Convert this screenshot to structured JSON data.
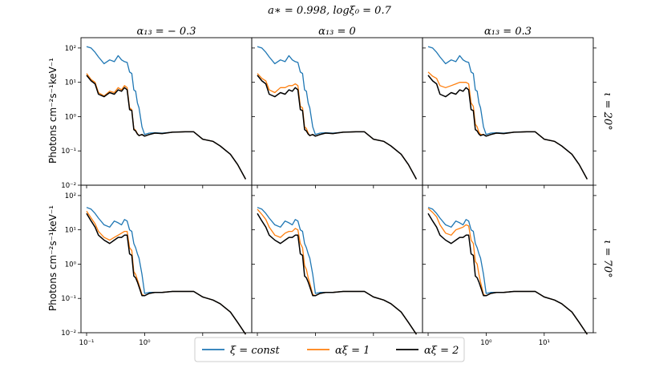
{
  "chart_data": {
    "type": "line",
    "title": "a∗ = 0.998, logξ₀ = 0.7",
    "ylabel": "Photons cm⁻²s⁻¹keV⁻¹",
    "xscale": "log",
    "yscale": "log",
    "xlim": [
      0.08,
      70
    ],
    "ylim": [
      0.01,
      200
    ],
    "x_ticks": [
      {
        "value": 0.1,
        "label": "10⁻¹"
      },
      {
        "value": 1,
        "label": "10⁰"
      },
      {
        "value": 10,
        "label": "10¹"
      }
    ],
    "y_ticks": [
      {
        "value": 100,
        "label": "10²"
      },
      {
        "value": 10,
        "label": "10¹"
      },
      {
        "value": 1,
        "label": "10⁰"
      },
      {
        "value": 0.1,
        "label": "10⁻¹"
      },
      {
        "value": 0.01,
        "label": "10⁻²"
      }
    ],
    "columns": [
      {
        "label": "α₁₃ = − 0.3",
        "value": -0.3
      },
      {
        "label": "α₁₃ = 0",
        "value": 0
      },
      {
        "label": "α₁₃ = 0.3",
        "value": 0.3
      }
    ],
    "rows": [
      {
        "label": "ι = 20°",
        "value": 20
      },
      {
        "label": "ι = 70°",
        "value": 70
      }
    ],
    "legend": [
      {
        "label": "ξ = const",
        "color": "#1f77b4"
      },
      {
        "label": "αξ = 1",
        "color": "#ff7f0e"
      },
      {
        "label": "αξ = 2",
        "color": "#000000"
      }
    ],
    "series": [
      {
        "name": "ξ = const",
        "color": "#1f77b4",
        "x": [
          0.1,
          0.12,
          0.14,
          0.16,
          0.2,
          0.25,
          0.3,
          0.35,
          0.4,
          0.45,
          0.5,
          0.55,
          0.6,
          0.65,
          0.7,
          0.75,
          0.8,
          0.9,
          1.0,
          1.2,
          1.5,
          2,
          3,
          5,
          7,
          10,
          15,
          20,
          30,
          40,
          55
        ],
        "panels": [
          [
            110,
            100,
            75,
            55,
            35,
            45,
            40,
            60,
            45,
            40,
            38,
            20,
            18,
            6,
            5.5,
            2.5,
            1.8,
            0.5,
            0.3,
            0.33,
            0.34,
            0.33,
            0.35,
            0.36,
            0.36,
            0.22,
            0.19,
            0.14,
            0.08,
            0.04,
            0.015
          ],
          [
            110,
            100,
            75,
            55,
            35,
            45,
            40,
            60,
            45,
            40,
            38,
            20,
            18,
            6,
            5.5,
            2.5,
            1.8,
            0.5,
            0.3,
            0.33,
            0.34,
            0.33,
            0.35,
            0.36,
            0.36,
            0.22,
            0.19,
            0.14,
            0.08,
            0.04,
            0.015
          ],
          [
            110,
            100,
            75,
            55,
            35,
            45,
            40,
            60,
            45,
            40,
            38,
            20,
            18,
            6,
            5.5,
            2.5,
            1.8,
            0.5,
            0.3,
            0.33,
            0.34,
            0.33,
            0.35,
            0.36,
            0.36,
            0.22,
            0.19,
            0.14,
            0.08,
            0.04,
            0.015
          ],
          [
            45,
            40,
            30,
            22,
            14,
            12,
            18,
            16,
            14,
            20,
            18,
            10,
            9,
            4,
            3,
            2,
            1.5,
            0.5,
            0.14,
            0.15,
            0.15,
            0.15,
            0.16,
            0.16,
            0.16,
            0.11,
            0.09,
            0.07,
            0.04,
            0.02,
            0.009
          ],
          [
            45,
            40,
            30,
            22,
            14,
            12,
            18,
            16,
            14,
            20,
            18,
            10,
            9,
            4,
            3,
            2,
            1.5,
            0.5,
            0.14,
            0.15,
            0.15,
            0.15,
            0.16,
            0.16,
            0.16,
            0.11,
            0.09,
            0.07,
            0.04,
            0.02,
            0.009
          ],
          [
            45,
            40,
            30,
            22,
            14,
            12,
            18,
            16,
            14,
            20,
            18,
            10,
            9,
            4,
            3,
            2,
            1.5,
            0.5,
            0.14,
            0.15,
            0.15,
            0.15,
            0.16,
            0.16,
            0.16,
            0.11,
            0.09,
            0.07,
            0.04,
            0.02,
            0.009
          ]
        ]
      },
      {
        "name": "αξ = 1",
        "color": "#ff7f0e",
        "x": [
          0.1,
          0.12,
          0.14,
          0.16,
          0.2,
          0.25,
          0.3,
          0.35,
          0.4,
          0.45,
          0.5,
          0.55,
          0.6,
          0.65,
          0.7,
          0.75,
          0.8,
          0.9,
          1.0,
          1.2,
          1.5,
          2,
          3,
          5,
          7,
          10,
          15,
          20,
          30,
          40,
          55
        ],
        "panels": [
          [
            18,
            12,
            10,
            5,
            4,
            5.5,
            5,
            7,
            6,
            8,
            7,
            1.8,
            1.6,
            0.45,
            0.4,
            0.32,
            0.28,
            0.3,
            0.27,
            0.3,
            0.33,
            0.32,
            0.35,
            0.36,
            0.36,
            0.22,
            0.19,
            0.14,
            0.08,
            0.04,
            0.015
          ],
          [
            18,
            13,
            11,
            6,
            5,
            7,
            7,
            8,
            8,
            9,
            8,
            2,
            1.8,
            0.5,
            0.45,
            0.33,
            0.28,
            0.3,
            0.27,
            0.3,
            0.33,
            0.32,
            0.35,
            0.36,
            0.36,
            0.22,
            0.19,
            0.14,
            0.08,
            0.04,
            0.015
          ],
          [
            20,
            15,
            13,
            8,
            7,
            8,
            9,
            10,
            10,
            10,
            9,
            2.5,
            2,
            0.6,
            0.5,
            0.35,
            0.3,
            0.3,
            0.27,
            0.3,
            0.33,
            0.32,
            0.35,
            0.36,
            0.36,
            0.22,
            0.19,
            0.14,
            0.08,
            0.04,
            0.015
          ],
          [
            35,
            22,
            15,
            9,
            6,
            5,
            6,
            7,
            8,
            9,
            9,
            3,
            2.5,
            0.6,
            0.5,
            0.35,
            0.25,
            0.13,
            0.12,
            0.14,
            0.15,
            0.15,
            0.16,
            0.16,
            0.16,
            0.11,
            0.09,
            0.07,
            0.04,
            0.02,
            0.009
          ],
          [
            40,
            28,
            20,
            12,
            7,
            6,
            8,
            9,
            9,
            11,
            10,
            4,
            3,
            0.9,
            0.7,
            0.4,
            0.28,
            0.13,
            0.12,
            0.14,
            0.15,
            0.15,
            0.16,
            0.16,
            0.16,
            0.11,
            0.09,
            0.07,
            0.04,
            0.02,
            0.009
          ],
          [
            42,
            32,
            24,
            14,
            8,
            7,
            10,
            11,
            12,
            14,
            13,
            5,
            4,
            1.2,
            1.0,
            0.5,
            0.3,
            0.13,
            0.12,
            0.14,
            0.15,
            0.15,
            0.16,
            0.16,
            0.16,
            0.11,
            0.09,
            0.07,
            0.04,
            0.02,
            0.009
          ]
        ]
      },
      {
        "name": "αξ = 2",
        "color": "#000000",
        "x": [
          0.1,
          0.12,
          0.14,
          0.16,
          0.2,
          0.25,
          0.3,
          0.35,
          0.4,
          0.45,
          0.5,
          0.55,
          0.6,
          0.65,
          0.7,
          0.75,
          0.8,
          0.9,
          1.0,
          1.2,
          1.5,
          2,
          3,
          5,
          7,
          10,
          15,
          20,
          30,
          40,
          55
        ],
        "panels": [
          [
            16,
            11,
            9,
            4.5,
            3.8,
            5,
            4.5,
            6,
            5.5,
            7,
            6,
            1.6,
            1.5,
            0.42,
            0.38,
            0.31,
            0.28,
            0.3,
            0.27,
            0.3,
            0.33,
            0.32,
            0.35,
            0.36,
            0.36,
            0.22,
            0.19,
            0.14,
            0.08,
            0.04,
            0.015
          ],
          [
            16,
            11,
            9,
            4.5,
            3.8,
            5,
            4.5,
            6,
            5.5,
            7,
            6,
            1.6,
            1.5,
            0.42,
            0.38,
            0.31,
            0.28,
            0.3,
            0.27,
            0.3,
            0.33,
            0.32,
            0.35,
            0.36,
            0.36,
            0.22,
            0.19,
            0.14,
            0.08,
            0.04,
            0.015
          ],
          [
            16,
            11,
            9,
            4.5,
            3.8,
            5,
            4.5,
            6,
            5.5,
            7,
            6,
            1.6,
            1.5,
            0.42,
            0.38,
            0.31,
            0.28,
            0.3,
            0.27,
            0.3,
            0.33,
            0.32,
            0.35,
            0.36,
            0.36,
            0.22,
            0.19,
            0.14,
            0.08,
            0.04,
            0.015
          ],
          [
            30,
            18,
            12,
            7,
            5,
            4,
            5,
            6,
            6,
            7,
            7,
            2,
            1.8,
            0.45,
            0.4,
            0.3,
            0.22,
            0.12,
            0.12,
            0.14,
            0.15,
            0.15,
            0.16,
            0.16,
            0.16,
            0.11,
            0.09,
            0.07,
            0.04,
            0.02,
            0.009
          ],
          [
            30,
            18,
            12,
            7,
            5,
            4,
            5,
            6,
            6,
            7,
            7,
            2,
            1.8,
            0.45,
            0.4,
            0.3,
            0.22,
            0.12,
            0.12,
            0.14,
            0.15,
            0.15,
            0.16,
            0.16,
            0.16,
            0.11,
            0.09,
            0.07,
            0.04,
            0.02,
            0.009
          ],
          [
            30,
            18,
            12,
            7,
            5,
            4,
            5,
            6,
            6,
            7,
            7,
            2,
            1.8,
            0.45,
            0.4,
            0.3,
            0.22,
            0.12,
            0.12,
            0.14,
            0.15,
            0.15,
            0.16,
            0.16,
            0.16,
            0.11,
            0.09,
            0.07,
            0.04,
            0.02,
            0.009
          ]
        ]
      }
    ]
  }
}
